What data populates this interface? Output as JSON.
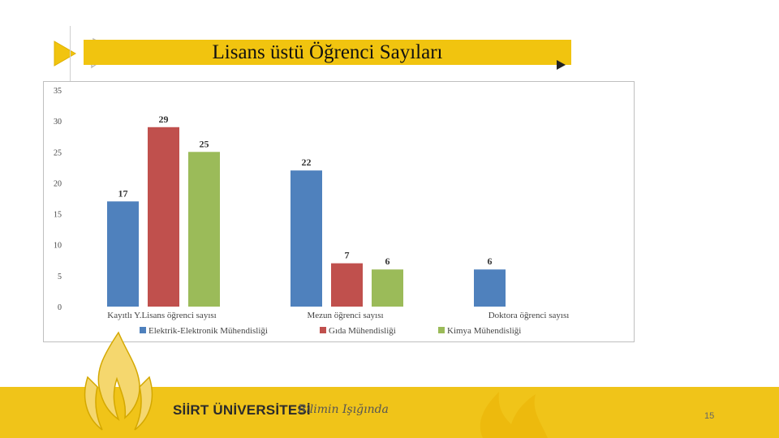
{
  "slide": {
    "title": "Lisans üstü Öğrenci Sayıları",
    "page_number": "15"
  },
  "footer": {
    "brand_name": "SİİRT ÜNİVERSİTESİ",
    "slogan": "Bilimin Işığında"
  },
  "colors": {
    "accent_yellow": "#f1c40f",
    "footer_yellow": "#f0c419"
  },
  "icons": [
    "play-arrow-icon",
    "flame-logo-icon"
  ],
  "chart_data": {
    "type": "bar",
    "categories": [
      "Kayıtlı Y.Lisans öğrenci sayısı",
      "Mezun öğrenci sayısı",
      "Doktora öğrenci sayısı"
    ],
    "series": [
      {
        "name": "Elektrik-Elektronik Mühendisliği",
        "color": "#4f81bd",
        "values": [
          17,
          22,
          6
        ]
      },
      {
        "name": "Gıda Mühendisliği",
        "color": "#c0504d",
        "values": [
          29,
          7,
          null
        ]
      },
      {
        "name": "Kimya Mühendisliği",
        "color": "#9bbb59",
        "values": [
          25,
          6,
          null
        ]
      }
    ],
    "ylim": [
      0,
      35
    ],
    "yticks": [
      "0",
      "5",
      "10",
      "15",
      "20",
      "25",
      "30",
      "35"
    ],
    "grid": false,
    "legend": "bottom"
  }
}
